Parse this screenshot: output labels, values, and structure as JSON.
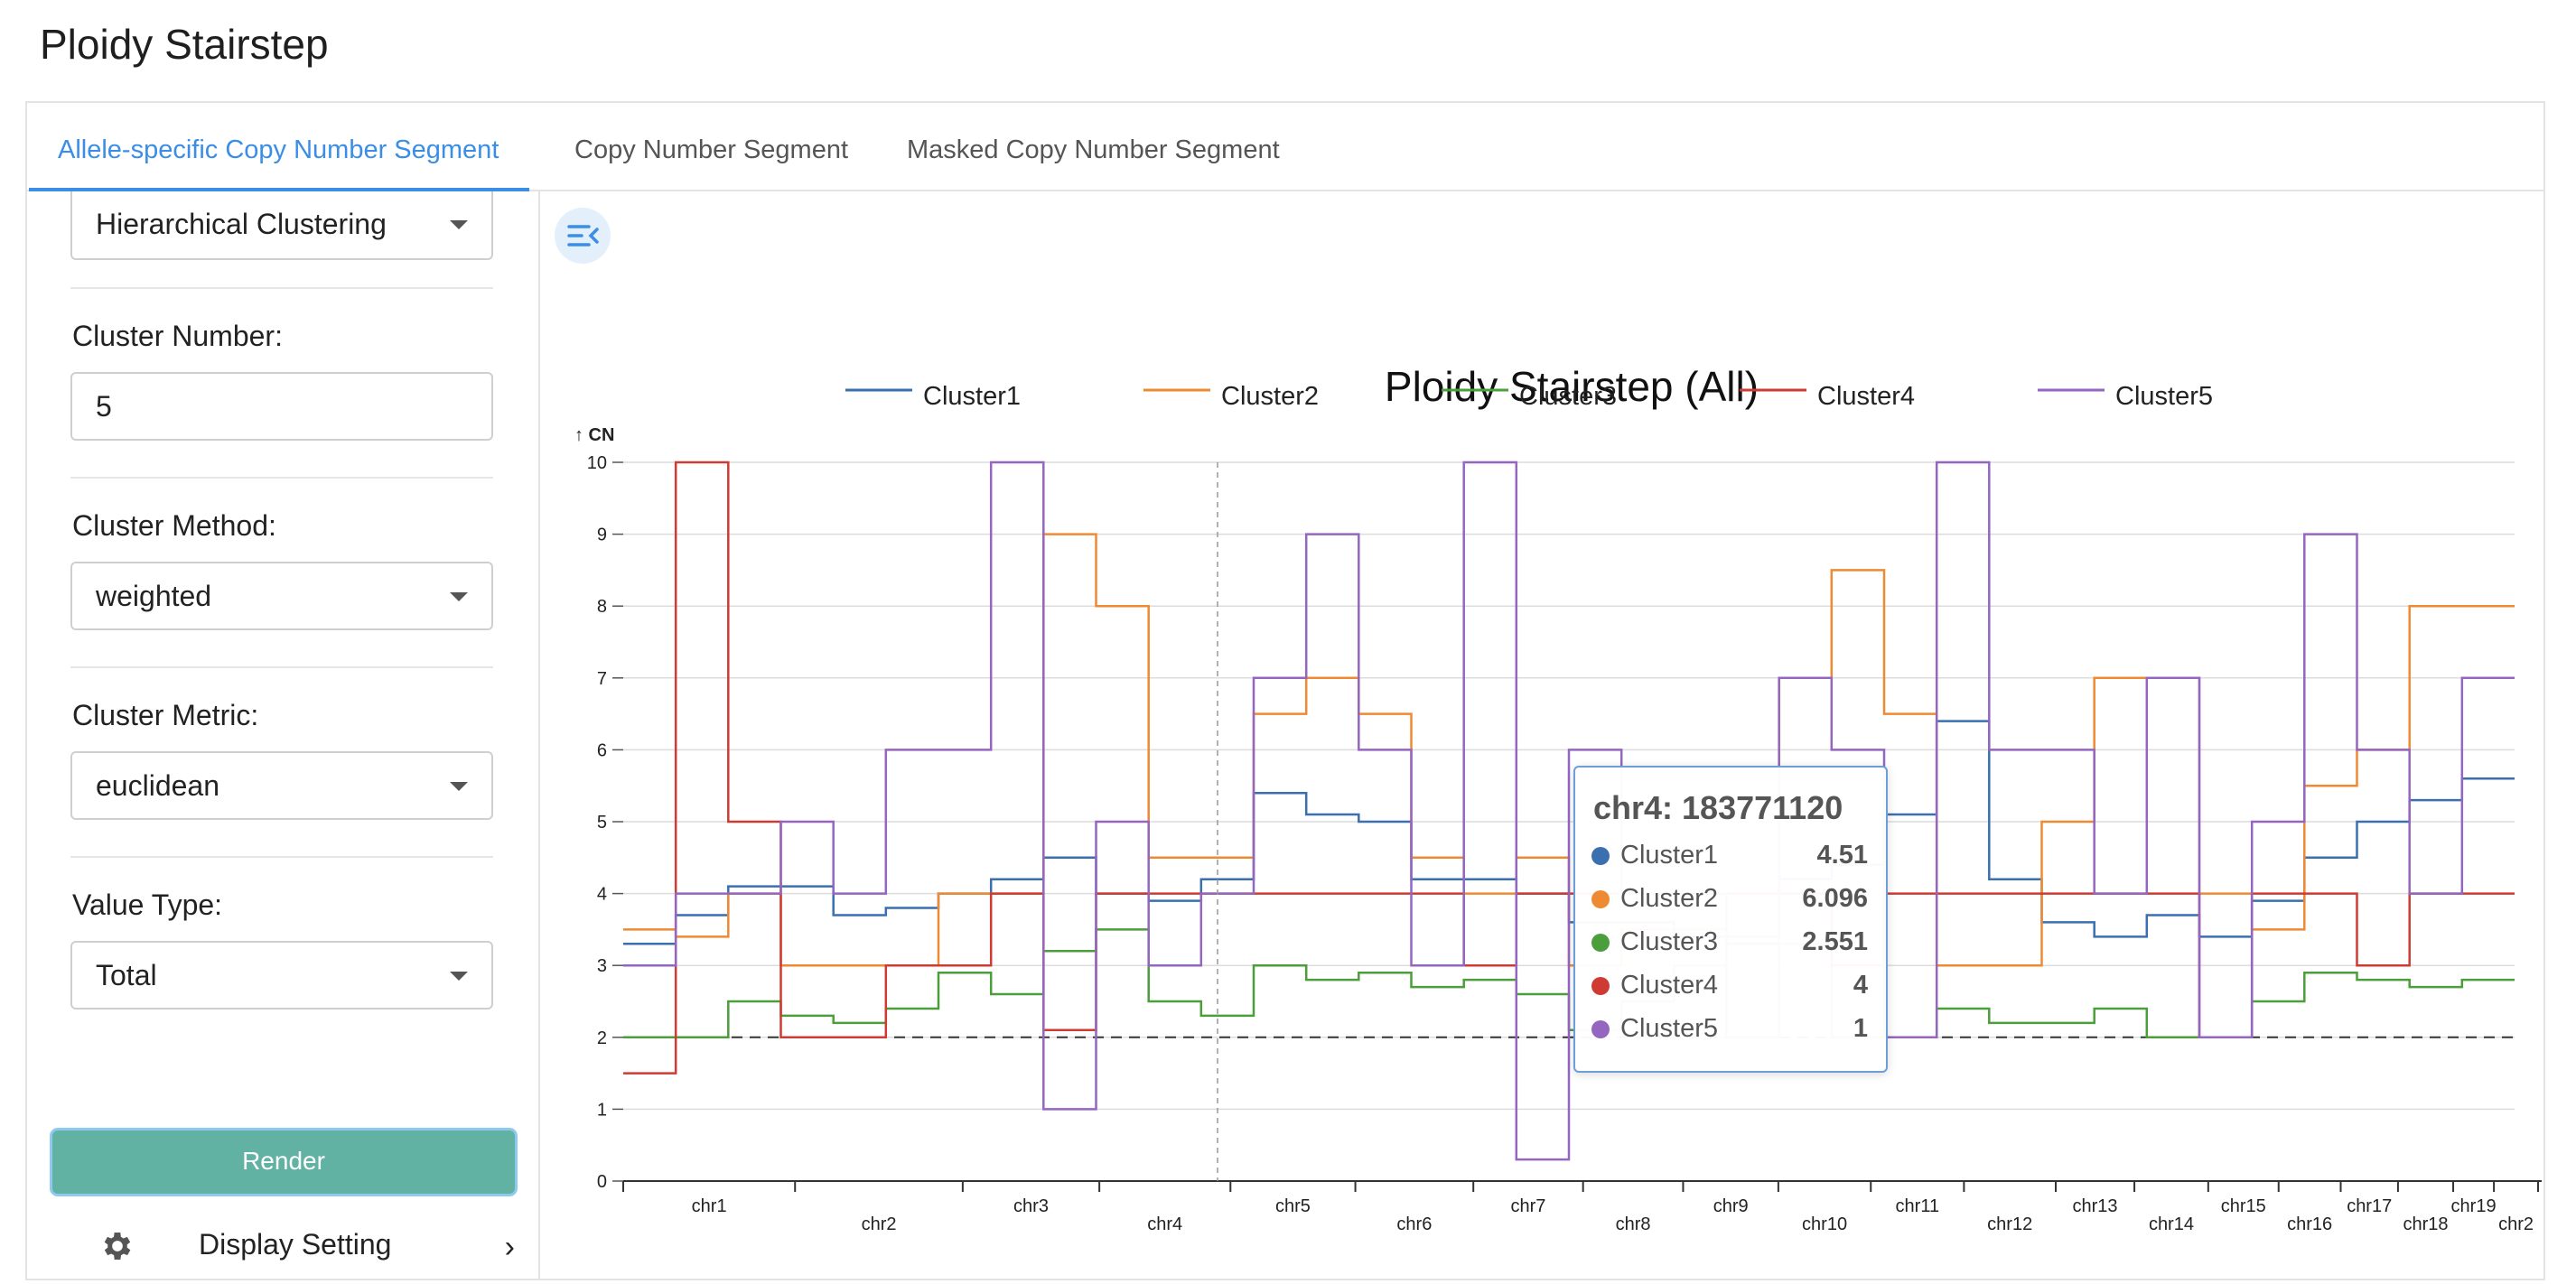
{
  "app": {
    "title": "Ploidy Stairstep"
  },
  "tabs": [
    {
      "label": "Allele-specific Copy Number Segment",
      "active": true
    },
    {
      "label": "Copy Number Segment",
      "active": false
    },
    {
      "label": "Masked Copy Number Segment",
      "active": false
    }
  ],
  "sidebar": {
    "clustering_method": {
      "value": "Hierarchical Clustering"
    },
    "cluster_number": {
      "label": "Cluster Number:",
      "value": "5"
    },
    "cluster_method": {
      "label": "Cluster Method:",
      "value": "weighted"
    },
    "cluster_metric": {
      "label": "Cluster Metric:",
      "value": "euclidean"
    },
    "value_type": {
      "label": "Value Type:",
      "value": "Total"
    },
    "render_label": "Render",
    "display_setting_label": "Display Setting"
  },
  "chart_data": {
    "type": "line",
    "step": true,
    "title": "Ploidy Stairstep (All)",
    "ylabel": "↑ CN",
    "xlabel": "",
    "ylim": [
      0,
      10
    ],
    "y_ticks": [
      "0",
      "1",
      "2",
      "3",
      "4",
      "5",
      "6",
      "7",
      "8",
      "9",
      "10"
    ],
    "grid": true,
    "legend_position": "top",
    "reference_line_y": 2,
    "chromosomes": [
      "chr1",
      "chr2",
      "chr3",
      "chr4",
      "chr5",
      "chr6",
      "chr7",
      "chr8",
      "chr9",
      "chr10",
      "chr11",
      "chr12",
      "chr13",
      "chr14",
      "chr15",
      "chr16",
      "chr17",
      "chr18",
      "chr19",
      "chr2"
    ],
    "series": [
      {
        "name": "Cluster1",
        "color": "#3a6fb0",
        "values": [
          3.3,
          3.7,
          4.1,
          4.1,
          3.7,
          3.8,
          4.0,
          4.2,
          4.5,
          4.0,
          3.9,
          4.2,
          5.4,
          5.1,
          5.0,
          4.2,
          4.2,
          4.0,
          3.6,
          3.6,
          3.4,
          3.3,
          4.2,
          4.4,
          5.1,
          6.4,
          4.2,
          3.6,
          3.4,
          3.7,
          3.4,
          3.9,
          4.5,
          5.0,
          5.3,
          5.6
        ]
      },
      {
        "name": "Cluster2",
        "color": "#ee8a33",
        "values": [
          3.5,
          3.4,
          4.0,
          3.0,
          3.0,
          3.0,
          4.0,
          4.0,
          9.0,
          8.0,
          4.5,
          4.5,
          6.5,
          7.0,
          6.5,
          4.5,
          4.0,
          4.5,
          3.0,
          3.5,
          3.5,
          4.0,
          7.0,
          8.5,
          6.5,
          3.0,
          3.0,
          5.0,
          7.0,
          7.0,
          4.0,
          3.5,
          5.5,
          6.0,
          8.0,
          8.0
        ]
      },
      {
        "name": "Cluster3",
        "color": "#4c9e3c",
        "values": [
          2.0,
          2.0,
          2.5,
          2.3,
          2.2,
          2.4,
          2.9,
          2.6,
          3.2,
          3.5,
          2.5,
          2.3,
          3.0,
          2.8,
          2.9,
          2.7,
          2.8,
          2.6,
          2.1,
          2.5,
          3.0,
          3.4,
          3.3,
          2.0,
          2.0,
          2.4,
          2.2,
          2.2,
          2.4,
          2.0,
          2.0,
          2.5,
          2.9,
          2.8,
          2.7,
          2.8
        ]
      },
      {
        "name": "Cluster4",
        "color": "#cf3b32",
        "values": [
          1.5,
          10.0,
          5.0,
          2.0,
          2.0,
          3.0,
          3.0,
          4.0,
          2.1,
          4.0,
          4.0,
          4.0,
          4.0,
          4.0,
          4.0,
          4.0,
          3.0,
          4.0,
          4.0,
          4.0,
          4.0,
          4.0,
          4.0,
          3.0,
          4.0,
          4.0,
          4.0,
          4.0,
          4.0,
          4.0,
          2.0,
          4.0,
          4.0,
          3.0,
          4.0,
          4.0
        ]
      },
      {
        "name": "Cluster5",
        "color": "#9466c0",
        "values": [
          3.0,
          4.0,
          4.0,
          5.0,
          4.0,
          6.0,
          6.0,
          10.0,
          1.0,
          5.0,
          3.0,
          4.0,
          7.0,
          9.0,
          6.0,
          3.0,
          10.0,
          0.3,
          6.0,
          4.0,
          4.0,
          2.0,
          7.0,
          6.0,
          2.0,
          10.0,
          6.0,
          6.0,
          4.0,
          7.0,
          2.0,
          5.0,
          9.0,
          6.0,
          4.0,
          7.0
        ]
      }
    ]
  },
  "tooltip": {
    "title": "chr4: 183771120",
    "rows": [
      {
        "name": "Cluster1",
        "value": "4.51",
        "color": "#3a6fb0"
      },
      {
        "name": "Cluster2",
        "value": "6.096",
        "color": "#ee8a33"
      },
      {
        "name": "Cluster3",
        "value": "2.551",
        "color": "#4c9e3c"
      },
      {
        "name": "Cluster4",
        "value": "4",
        "color": "#cf3b32"
      },
      {
        "name": "Cluster5",
        "value": "1",
        "color": "#9466c0"
      }
    ]
  }
}
